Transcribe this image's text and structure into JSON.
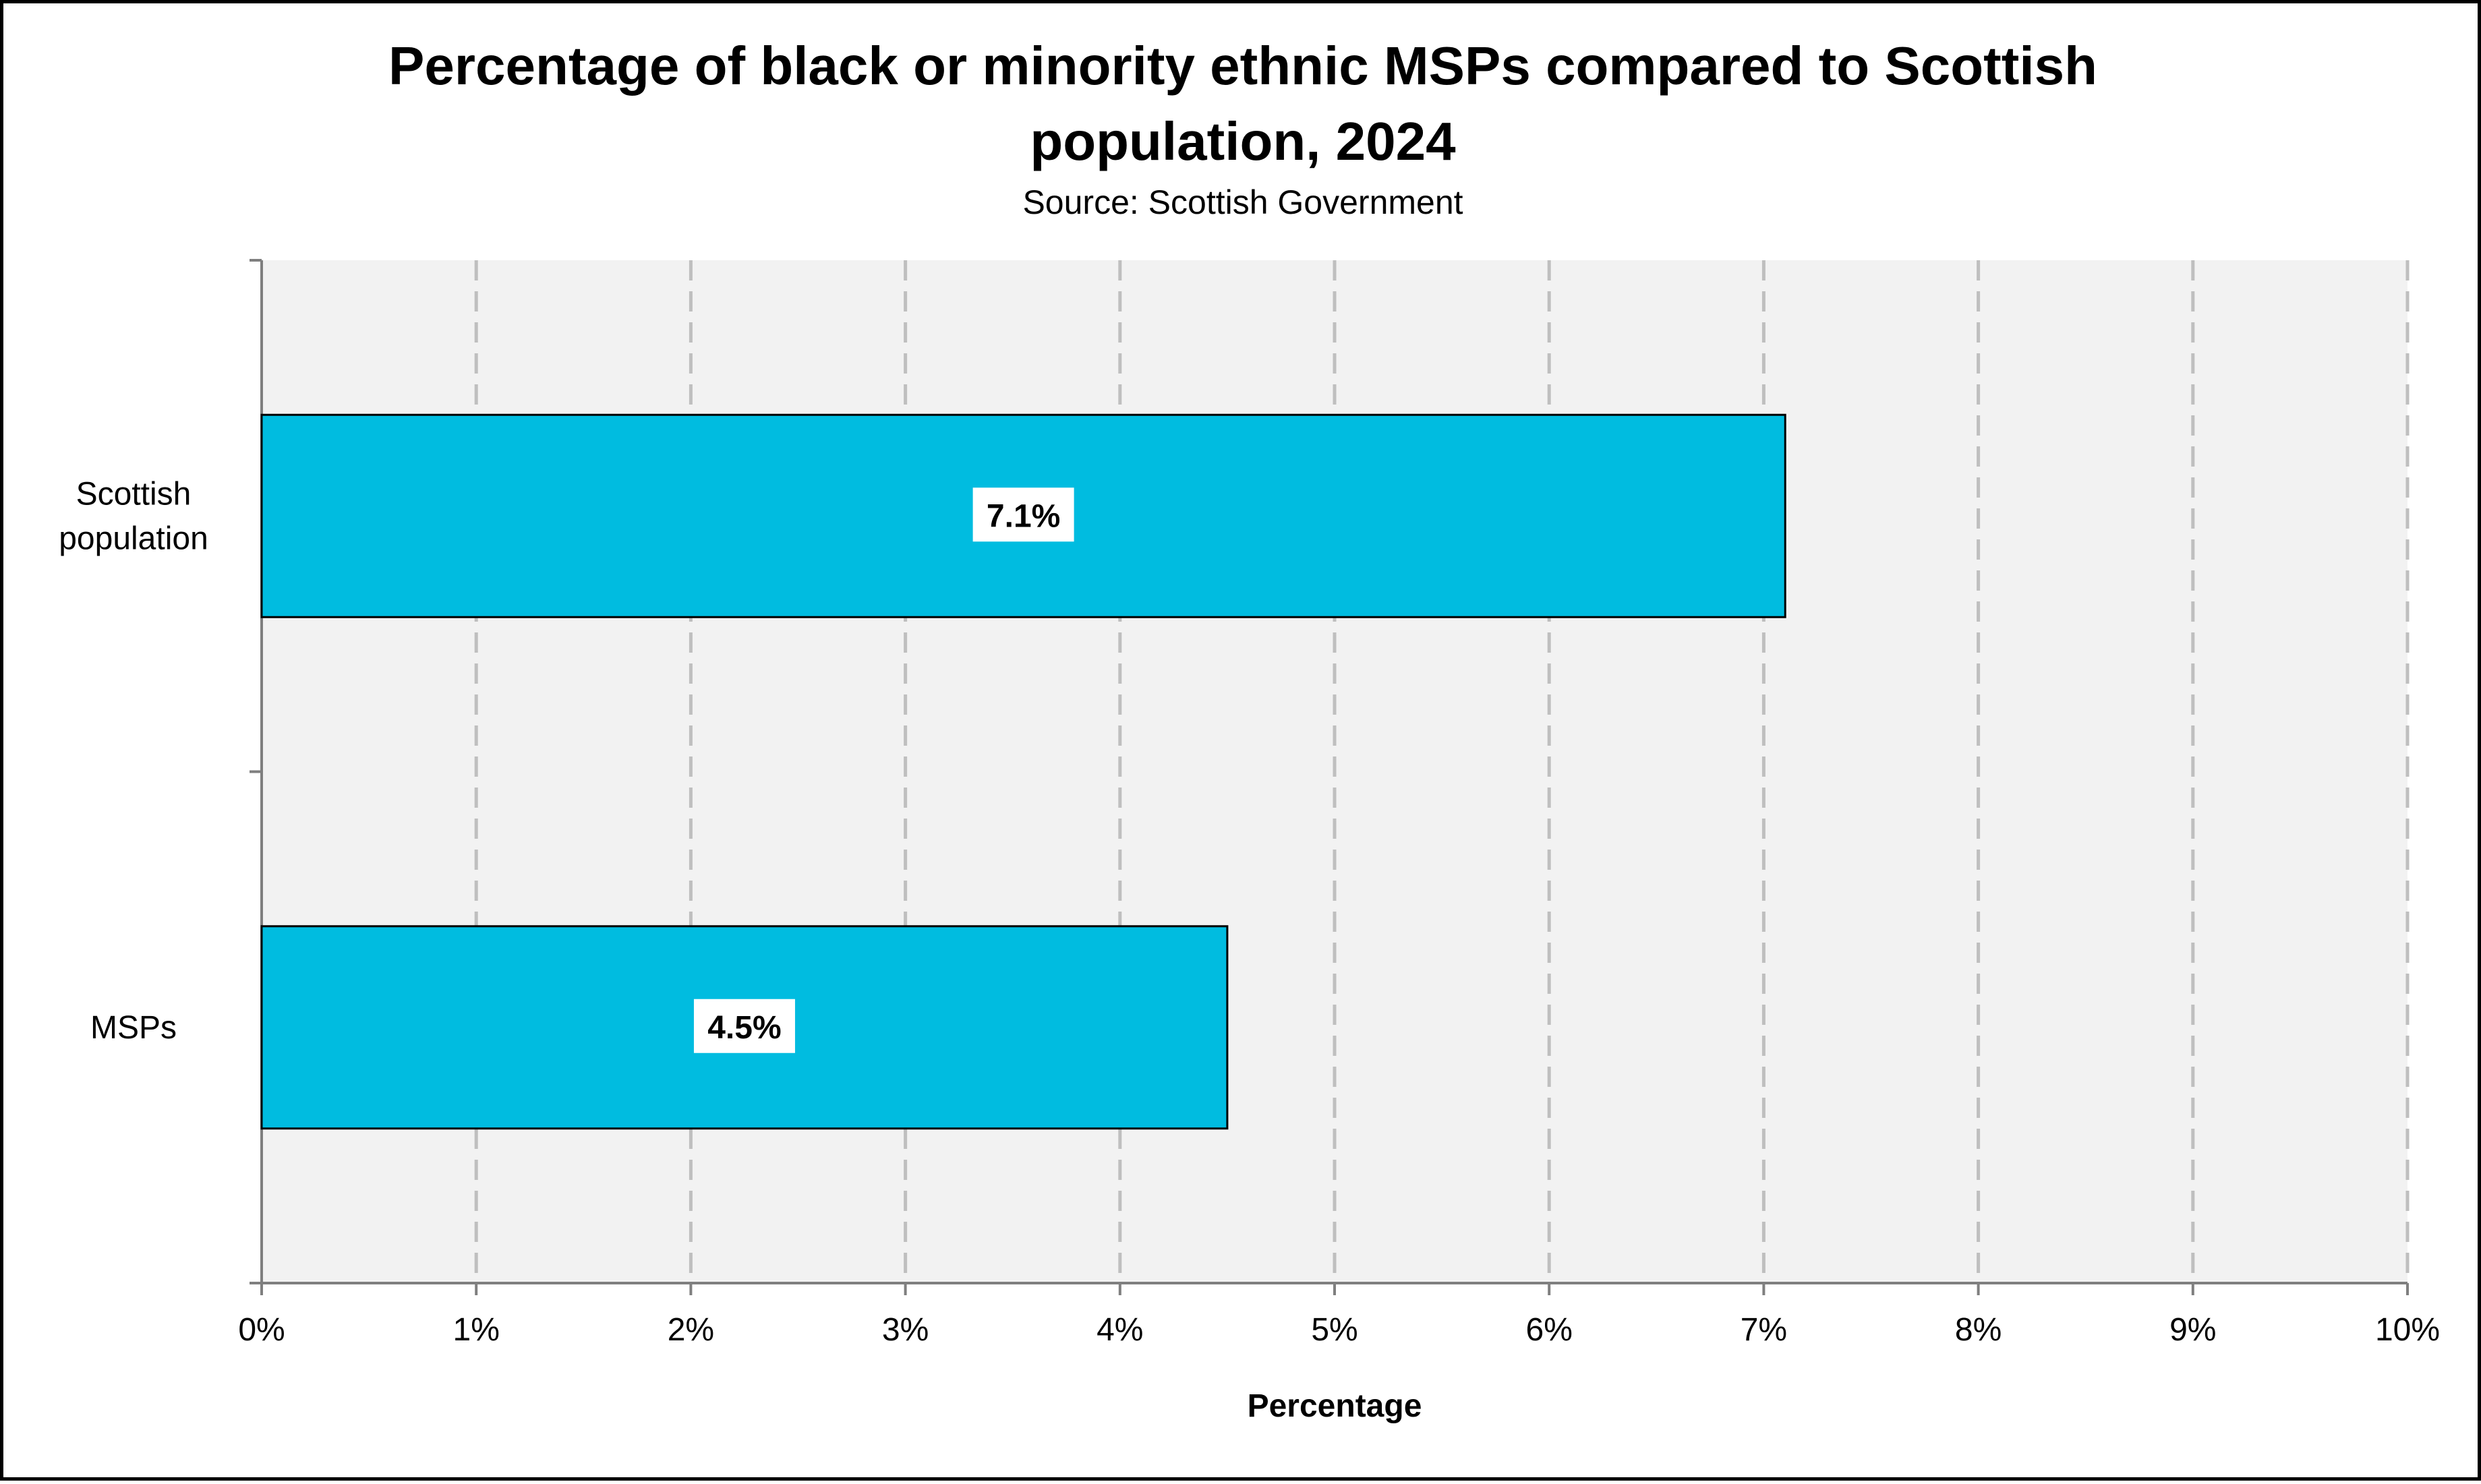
{
  "chart_data": {
    "type": "bar",
    "orientation": "horizontal",
    "title": "Percentage of black or minority ethnic MSPs compared to Scottish population, 2024",
    "title_lines": [
      "Percentage of black or minority ethnic MSPs compared to Scottish",
      "population, 2024"
    ],
    "subtitle": "Source: Scottish Government",
    "xlabel": "Percentage",
    "ylabel": "",
    "categories": [
      "Scottish population",
      "MSPs"
    ],
    "category_lines": [
      [
        "Scottish",
        "population"
      ],
      [
        "MSPs"
      ]
    ],
    "values": [
      7.1,
      4.5
    ],
    "data_labels": [
      "7.1%",
      "4.5%"
    ],
    "xlim": [
      0,
      10
    ],
    "x_ticks": [
      "0%",
      "1%",
      "2%",
      "3%",
      "4%",
      "5%",
      "6%",
      "7%",
      "8%",
      "9%",
      "10%"
    ],
    "grid": "vertical dashed",
    "legend": "none",
    "colors": {
      "bar": "#00BCE0",
      "bar_border": "#000000",
      "plot_background": "#F2F2F2",
      "gridline": "#BFBFBF",
      "axis": "#7F7F7F",
      "label_box": "#FFFFFF"
    }
  }
}
